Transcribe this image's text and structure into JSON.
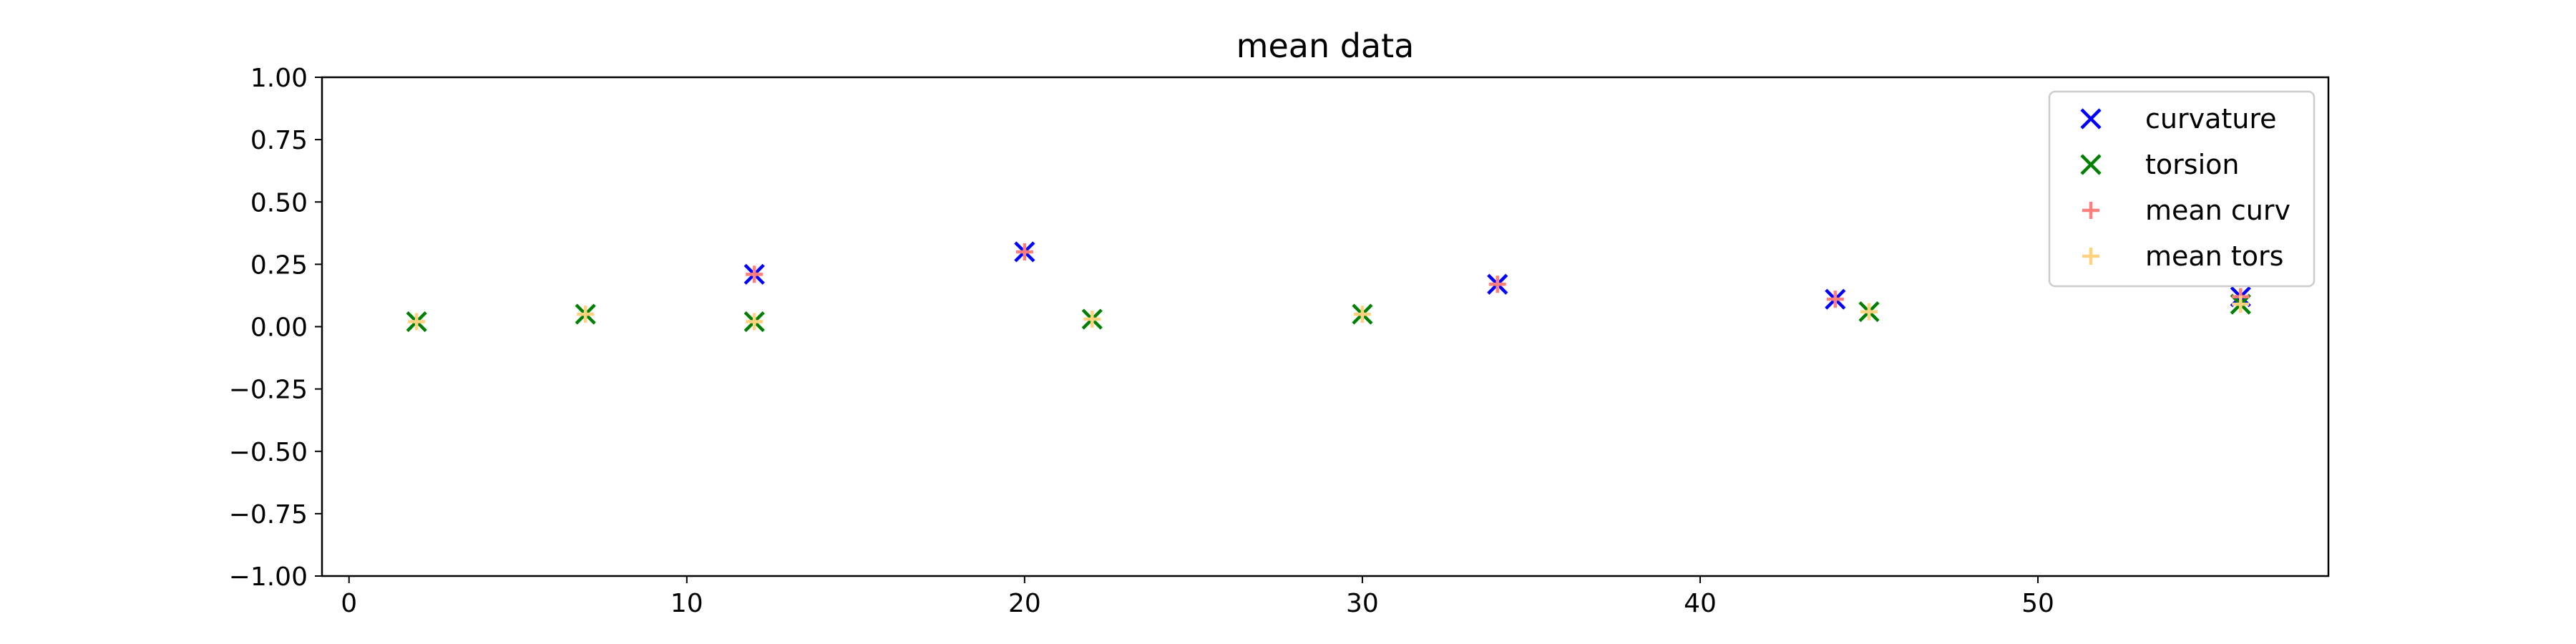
{
  "chart_data": {
    "type": "scatter",
    "title": "mean data",
    "xlabel": "",
    "ylabel": "",
    "xlim": [
      -0.8,
      58.6
    ],
    "ylim": [
      -1.0,
      1.0
    ],
    "xticks": [
      0,
      10,
      20,
      30,
      40,
      50
    ],
    "yticks": [
      -1.0,
      -0.75,
      -0.5,
      -0.25,
      0.0,
      0.25,
      0.5,
      0.75,
      1.0
    ],
    "ytick_labels": [
      "−1.00",
      "−0.75",
      "−0.50",
      "−0.25",
      "0.00",
      "0.25",
      "0.50",
      "0.75",
      "1.00"
    ],
    "grid": false,
    "legend_position": "top-right",
    "series": [
      {
        "name": "curvature",
        "marker": "x",
        "color": "#0000ff",
        "points": [
          [
            12,
            0.21
          ],
          [
            20,
            0.3
          ],
          [
            34,
            0.17
          ],
          [
            44,
            0.11
          ],
          [
            56,
            0.12
          ]
        ]
      },
      {
        "name": "torsion",
        "marker": "x",
        "color": "#008000",
        "points": [
          [
            2,
            0.02
          ],
          [
            7,
            0.05
          ],
          [
            12,
            0.02
          ],
          [
            22,
            0.03
          ],
          [
            30,
            0.05
          ],
          [
            45,
            0.06
          ],
          [
            56,
            0.09
          ]
        ]
      },
      {
        "name": "mean curv",
        "marker": "+",
        "color": "#ff7f7f",
        "points": [
          [
            12,
            0.21
          ],
          [
            20,
            0.3
          ],
          [
            34,
            0.17
          ],
          [
            44,
            0.11
          ],
          [
            56,
            0.12
          ]
        ]
      },
      {
        "name": "mean tors",
        "marker": "+",
        "color": "#ffd27f",
        "points": [
          [
            2,
            0.02
          ],
          [
            7,
            0.05
          ],
          [
            12,
            0.02
          ],
          [
            22,
            0.03
          ],
          [
            30,
            0.05
          ],
          [
            45,
            0.06
          ],
          [
            56,
            0.09
          ]
        ]
      }
    ]
  }
}
